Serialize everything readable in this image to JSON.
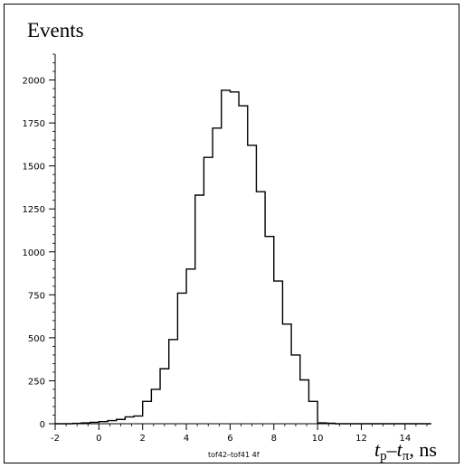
{
  "chart_data": {
    "type": "bar",
    "title": "",
    "ylabel": "Events",
    "xlabel": {
      "t1": "t",
      "s1": "p",
      "dash": "–",
      "t2": "t",
      "s2": "π",
      "unit": ", ns"
    },
    "caption": "tof42–tof41 4f",
    "xlim": [
      -2,
      15
    ],
    "ylim": [
      0,
      2150
    ],
    "x_ticks": [
      "-2",
      "0",
      "2",
      "4",
      "6",
      "8",
      "10",
      "12",
      "14"
    ],
    "y_ticks": [
      "0",
      "250",
      "500",
      "750",
      "1000",
      "1250",
      "1500",
      "1750",
      "2000"
    ],
    "grid": false,
    "bin_width": 0.4,
    "bin_edges_start": -2,
    "values": [
      0,
      0,
      2,
      5,
      8,
      12,
      18,
      25,
      40,
      45,
      130,
      200,
      320,
      490,
      760,
      900,
      1330,
      1550,
      1720,
      1940,
      1930,
      1850,
      1620,
      1350,
      1090,
      830,
      580,
      400,
      255,
      130,
      5,
      3,
      0,
      0,
      0,
      0,
      0,
      0,
      0,
      0,
      0,
      0,
      0
    ]
  }
}
